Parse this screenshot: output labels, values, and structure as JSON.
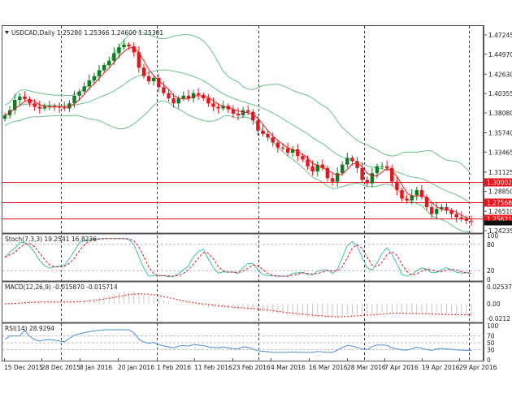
{
  "chart_data": {
    "type": "candlestick",
    "title": "USDCAD,Daily",
    "header": {
      "symbol": "USDCAD,Daily",
      "open": "1.25280",
      "high": "1.25366",
      "low": "1.24600",
      "close": "1.25301"
    },
    "price_axis": {
      "ticks": [
        "1.47245",
        "1.44970",
        "1.42630",
        "1.40355",
        "1.38080",
        "1.35740",
        "1.33465",
        "1.31125",
        "1.28850",
        "1.26510",
        "1.24235"
      ],
      "range": [
        1.24235,
        1.47245
      ]
    },
    "horizontal_lines": [
      {
        "label": "1.30002",
        "value": 1.30002,
        "color": "#e8141b"
      },
      {
        "label": "1.27568",
        "value": 1.27568,
        "color": "#e8141b"
      },
      {
        "label": "1.25621",
        "value": 1.25621,
        "color": "#e8141b"
      }
    ],
    "current_price_tag": "1.25301",
    "x_axis": {
      "ticks": [
        "15 Dec 2015",
        "28 Dec 2015",
        "8 Jan 2016",
        "20 Jan 2016",
        "1 Feb 2016",
        "11 Feb 2016",
        "23 Feb 2016",
        "4 Mar 2016",
        "16 Mar 2016",
        "28 Mar 2016",
        "7 Apr 2016",
        "19 Apr 2016",
        "29 Apr 2016"
      ]
    },
    "candles_close_approx": [
      1.378,
      1.384,
      1.396,
      1.4,
      1.397,
      1.392,
      1.388,
      1.386,
      1.388,
      1.389,
      1.388,
      1.387,
      1.386,
      1.392,
      1.401,
      1.406,
      1.412,
      1.419,
      1.424,
      1.431,
      1.437,
      1.442,
      1.451,
      1.458,
      1.461,
      1.459,
      1.452,
      1.434,
      1.424,
      1.418,
      1.422,
      1.411,
      1.404,
      1.398,
      1.392,
      1.398,
      1.401,
      1.398,
      1.404,
      1.402,
      1.398,
      1.392,
      1.388,
      1.386,
      1.389,
      1.385,
      1.38,
      1.378,
      1.384,
      1.382,
      1.372,
      1.36,
      1.356,
      1.352,
      1.346,
      1.34,
      1.339,
      1.334,
      1.338,
      1.33,
      1.326,
      1.318,
      1.312,
      1.32,
      1.316,
      1.304,
      1.3,
      1.31,
      1.32,
      1.328,
      1.324,
      1.316,
      1.302,
      1.298,
      1.31,
      1.318,
      1.318,
      1.316,
      1.3,
      1.29,
      1.28,
      1.278,
      1.284,
      1.29,
      1.282,
      1.27,
      1.262,
      1.268,
      1.27,
      1.266,
      1.262,
      1.258,
      1.256,
      1.254,
      1.253
    ],
    "indicators": [
      {
        "name": "Stoch(7,3,3)",
        "values_label": "19.2541 16.8236",
        "main": 19.2541,
        "signal": 16.8236,
        "levels": [
          100,
          80,
          20,
          0
        ],
        "main_color": "#3dbfb0",
        "signal_color": "#e8141b"
      },
      {
        "name": "MACD(12,26,9)",
        "values_label": "-0.015870 -0.015714",
        "macd": -0.01587,
        "signal": -0.015714,
        "axis": [
          "0.025377",
          "0.00",
          "-0.0212"
        ]
      },
      {
        "name": "RSI(14)",
        "values_label": "28.9294",
        "value": 28.9294,
        "levels": [
          100,
          70,
          50,
          30,
          0
        ],
        "color": "#4a90d9"
      }
    ],
    "overlays": [
      "Bollinger Bands (green)",
      "Moving average (red)"
    ],
    "colors": {
      "bull": "#0a7d1e",
      "bear": "#e8141b",
      "bands": "#6cbf8b",
      "ma": "#e8141b"
    }
  },
  "ui": {
    "collapse_icon": "triangle-down-icon"
  }
}
